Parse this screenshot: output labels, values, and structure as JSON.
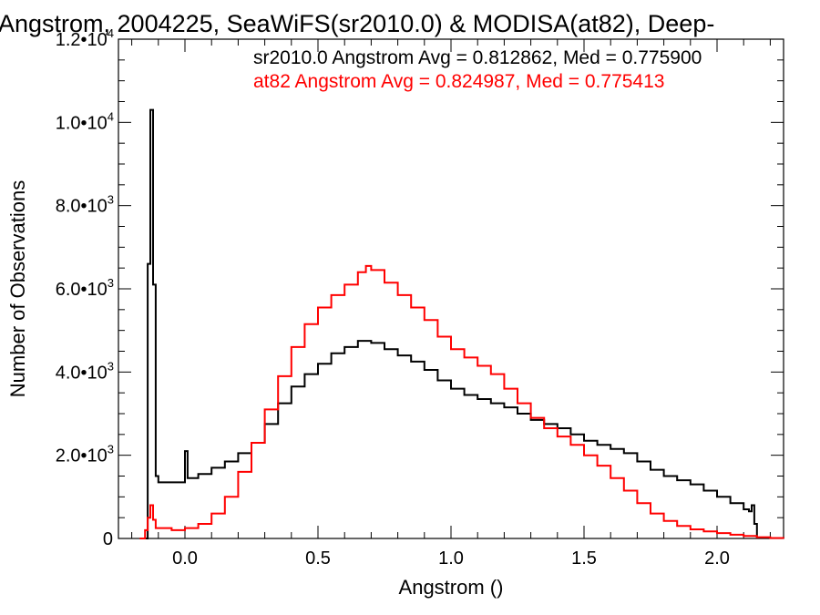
{
  "chart_data": {
    "type": "histogram",
    "title": "Angstrom, 2004225, SeaWiFS(sr2010.0) & MODISA(at82), Deep-",
    "xlabel": "Angstrom ()",
    "ylabel": "Number of Observations",
    "xlim": [
      -0.25,
      2.25
    ],
    "ylim": [
      0,
      12000
    ],
    "x_ticks": [
      {
        "value": 0.0,
        "label": "0.0"
      },
      {
        "value": 0.5,
        "label": "0.5"
      },
      {
        "value": 1.0,
        "label": "1.0"
      },
      {
        "value": 1.5,
        "label": "1.5"
      },
      {
        "value": 2.0,
        "label": "2.0"
      }
    ],
    "y_ticks": [
      {
        "value": 0,
        "mantissa": "0",
        "exponent": ""
      },
      {
        "value": 2000,
        "mantissa": "2.0•10",
        "exponent": "3"
      },
      {
        "value": 4000,
        "mantissa": "4.0•10",
        "exponent": "3"
      },
      {
        "value": 6000,
        "mantissa": "6.0•10",
        "exponent": "3"
      },
      {
        "value": 8000,
        "mantissa": "8.0•10",
        "exponent": "3"
      },
      {
        "value": 10000,
        "mantissa": "1.0•10",
        "exponent": "4"
      },
      {
        "value": 12000,
        "mantissa": "1.2•10",
        "exponent": "4"
      }
    ],
    "grid": false,
    "legend_position": "top-right",
    "series": [
      {
        "label": "sr2010.0 Angstrom Avg = 0.812862, Med = 0.775900",
        "color": "#000000",
        "points": [
          [
            -0.15,
            0
          ],
          [
            -0.14,
            6600
          ],
          [
            -0.13,
            10300
          ],
          [
            -0.12,
            6100
          ],
          [
            -0.11,
            1500
          ],
          [
            -0.1,
            1350
          ],
          [
            -0.05,
            1350
          ],
          [
            0.0,
            1400
          ],
          [
            0.0,
            2100
          ],
          [
            0.01,
            1450
          ],
          [
            0.05,
            1550
          ],
          [
            0.1,
            1700
          ],
          [
            0.15,
            1850
          ],
          [
            0.2,
            2050
          ],
          [
            0.25,
            2300
          ],
          [
            0.3,
            2750
          ],
          [
            0.35,
            3250
          ],
          [
            0.4,
            3650
          ],
          [
            0.45,
            3950
          ],
          [
            0.5,
            4200
          ],
          [
            0.55,
            4450
          ],
          [
            0.6,
            4600
          ],
          [
            0.65,
            4750
          ],
          [
            0.7,
            4700
          ],
          [
            0.75,
            4550
          ],
          [
            0.8,
            4400
          ],
          [
            0.85,
            4250
          ],
          [
            0.9,
            4050
          ],
          [
            0.95,
            3800
          ],
          [
            1.0,
            3600
          ],
          [
            1.05,
            3450
          ],
          [
            1.1,
            3350
          ],
          [
            1.15,
            3250
          ],
          [
            1.2,
            3150
          ],
          [
            1.25,
            3000
          ],
          [
            1.3,
            2850
          ],
          [
            1.35,
            2750
          ],
          [
            1.4,
            2650
          ],
          [
            1.45,
            2500
          ],
          [
            1.5,
            2350
          ],
          [
            1.55,
            2250
          ],
          [
            1.6,
            2150
          ],
          [
            1.65,
            2050
          ],
          [
            1.7,
            1850
          ],
          [
            1.75,
            1650
          ],
          [
            1.8,
            1500
          ],
          [
            1.85,
            1400
          ],
          [
            1.9,
            1300
          ],
          [
            1.95,
            1150
          ],
          [
            2.0,
            1000
          ],
          [
            2.05,
            850
          ],
          [
            2.1,
            700
          ],
          [
            2.12,
            650
          ],
          [
            2.13,
            800
          ],
          [
            2.14,
            350
          ],
          [
            2.15,
            0
          ]
        ]
      },
      {
        "label": "at82 Angstrom Avg = 0.824987, Med = 0.775413",
        "color": "#ff0000",
        "points": [
          [
            -0.17,
            0
          ],
          [
            -0.15,
            200
          ],
          [
            -0.14,
            500
          ],
          [
            -0.13,
            800
          ],
          [
            -0.12,
            450
          ],
          [
            -0.11,
            250
          ],
          [
            -0.05,
            200
          ],
          [
            0.0,
            250
          ],
          [
            0.05,
            350
          ],
          [
            0.1,
            600
          ],
          [
            0.15,
            1000
          ],
          [
            0.2,
            1600
          ],
          [
            0.25,
            2300
          ],
          [
            0.3,
            3100
          ],
          [
            0.35,
            3900
          ],
          [
            0.4,
            4600
          ],
          [
            0.45,
            5150
          ],
          [
            0.5,
            5550
          ],
          [
            0.55,
            5850
          ],
          [
            0.6,
            6100
          ],
          [
            0.65,
            6400
          ],
          [
            0.68,
            6550
          ],
          [
            0.7,
            6450
          ],
          [
            0.75,
            6150
          ],
          [
            0.8,
            5850
          ],
          [
            0.85,
            5550
          ],
          [
            0.9,
            5250
          ],
          [
            0.95,
            4850
          ],
          [
            1.0,
            4550
          ],
          [
            1.05,
            4350
          ],
          [
            1.1,
            4150
          ],
          [
            1.15,
            3950
          ],
          [
            1.2,
            3600
          ],
          [
            1.25,
            3250
          ],
          [
            1.3,
            2900
          ],
          [
            1.35,
            2650
          ],
          [
            1.4,
            2450
          ],
          [
            1.45,
            2250
          ],
          [
            1.5,
            2000
          ],
          [
            1.55,
            1750
          ],
          [
            1.6,
            1450
          ],
          [
            1.65,
            1150
          ],
          [
            1.7,
            850
          ],
          [
            1.75,
            600
          ],
          [
            1.8,
            420
          ],
          [
            1.85,
            300
          ],
          [
            1.9,
            220
          ],
          [
            1.95,
            170
          ],
          [
            2.0,
            130
          ],
          [
            2.05,
            90
          ],
          [
            2.1,
            60
          ],
          [
            2.15,
            30
          ],
          [
            2.2,
            10
          ],
          [
            2.25,
            0
          ]
        ]
      }
    ]
  }
}
